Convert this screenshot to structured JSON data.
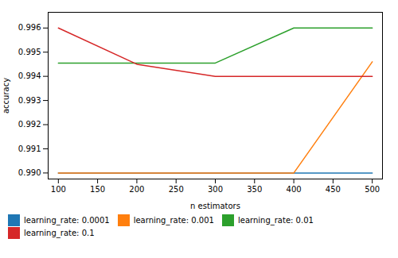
{
  "chart_data": {
    "type": "line",
    "x": [
      100,
      200,
      300,
      400,
      500
    ],
    "series": [
      {
        "name": "learning_rate: 0.0001",
        "color": "#1f77b4",
        "values": [
          0.99,
          0.99,
          0.99,
          0.99,
          0.99
        ]
      },
      {
        "name": "learning_rate: 0.001",
        "color": "#ff7f0e",
        "values": [
          0.99,
          0.99,
          0.99,
          0.99,
          0.9946
        ]
      },
      {
        "name": "learning_rate: 0.01",
        "color": "#2ca02c",
        "values": [
          0.99455,
          0.99455,
          0.99455,
          0.996,
          0.996
        ]
      },
      {
        "name": "learning_rate: 0.1",
        "color": "#d62728",
        "values": [
          0.996,
          0.9945,
          0.994,
          0.994,
          0.994
        ]
      }
    ],
    "x_label": "n estimators",
    "y_label": "accuracy",
    "xlim": [
      87,
      513
    ],
    "xticks": [
      100,
      150,
      200,
      250,
      300,
      350,
      400,
      450,
      500
    ],
    "ylim": [
      0.98975,
      0.99665
    ],
    "yticks": [
      {
        "value": 0.99,
        "label": "0.990"
      },
      0.991,
      0.992,
      0.993,
      0.994,
      0.995,
      0.996
    ],
    "legend": "left",
    "grid": false
  }
}
